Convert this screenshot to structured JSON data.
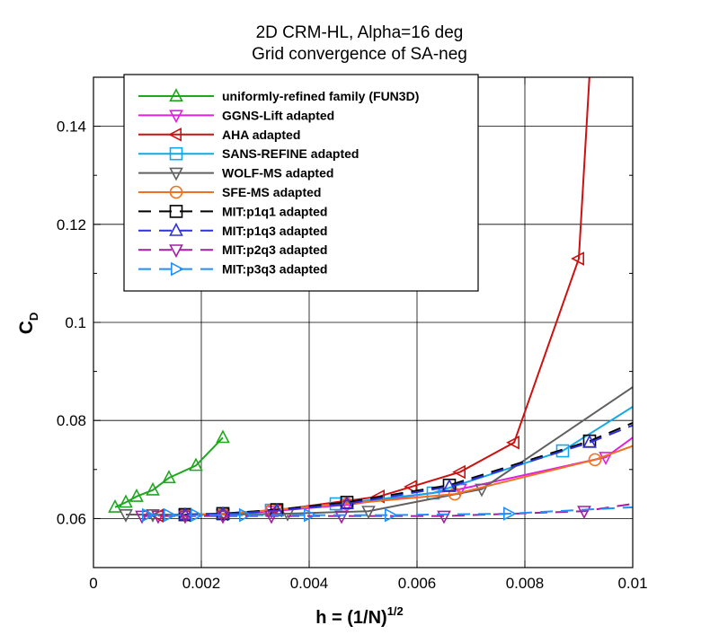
{
  "chart_data": {
    "type": "line",
    "title": "2D CRM-HL, Alpha=16 deg",
    "subtitle": "Grid convergence of SA-neg",
    "xlabel": {
      "main": "h = (1/N)",
      "sup": "1/2"
    },
    "ylabel": {
      "main": "C",
      "sub": "D"
    },
    "xlim": [
      0,
      0.01
    ],
    "ylim": [
      0.05,
      0.15
    ],
    "xticks": [
      0,
      0.002,
      0.004,
      0.006,
      0.008,
      0.01
    ],
    "xtick_labels": [
      "0",
      "0.002",
      "0.004",
      "0.006",
      "0.008",
      "0.01"
    ],
    "yticks": [
      0.06,
      0.08,
      0.1,
      0.12,
      0.14
    ],
    "ytick_labels": [
      "0.06",
      "0.08",
      "0.1",
      "0.12",
      "0.14"
    ],
    "grid": true,
    "legend_position": "top-left",
    "series": [
      {
        "name": "uniformly-refined family (FUN3D)",
        "color": "#1fa81f",
        "marker": "triangle-up",
        "dash": "solid",
        "points": [
          [
            0.0004,
            0.0623
          ],
          [
            0.0006,
            0.0633
          ],
          [
            0.0008,
            0.0645
          ],
          [
            0.0011,
            0.0658
          ],
          [
            0.0014,
            0.0683
          ],
          [
            0.0019,
            0.0708
          ],
          [
            0.0024,
            0.0765
          ]
        ]
      },
      {
        "name": "GGNS-Lift adapted",
        "color": "#e020e0",
        "marker": "triangle-down",
        "dash": "solid",
        "points": [
          [
            0.0017,
            0.0608
          ],
          [
            0.0024,
            0.0608
          ],
          [
            0.0033,
            0.0615
          ],
          [
            0.0047,
            0.0628
          ],
          [
            0.0068,
            0.066
          ],
          [
            0.0095,
            0.0725
          ],
          [
            0.01,
            0.0765
          ]
        ]
      },
      {
        "name": "AHA adapted",
        "color": "#cc1111",
        "marker": "triangle-left",
        "dash": "solid",
        "points": [
          [
            0.0012,
            0.0606
          ],
          [
            0.0017,
            0.0607
          ],
          [
            0.0024,
            0.0609
          ],
          [
            0.0034,
            0.0617
          ],
          [
            0.0053,
            0.0645
          ],
          [
            0.0059,
            0.0665
          ],
          [
            0.0068,
            0.0695
          ],
          [
            0.0078,
            0.0755
          ],
          [
            0.009,
            0.113
          ],
          [
            0.00925,
            0.16
          ]
        ]
      },
      {
        "name": "SANS-REFINE adapted",
        "color": "#10a8e8",
        "marker": "square",
        "dash": "solid",
        "points": [
          [
            0.0017,
            0.0608
          ],
          [
            0.0024,
            0.061
          ],
          [
            0.0033,
            0.0617
          ],
          [
            0.0045,
            0.063
          ],
          [
            0.0063,
            0.0652
          ],
          [
            0.0087,
            0.0738
          ],
          [
            0.01,
            0.0828
          ]
        ]
      },
      {
        "name": "WOLF-MS adapted",
        "color": "#606060",
        "marker": "triangle-down",
        "dash": "solid",
        "points": [
          [
            0.0006,
            0.0608
          ],
          [
            0.0011,
            0.0608
          ],
          [
            0.0017,
            0.0608
          ],
          [
            0.0024,
            0.0608
          ],
          [
            0.0036,
            0.061
          ],
          [
            0.0051,
            0.0615
          ],
          [
            0.0072,
            0.066
          ],
          [
            0.01,
            0.0868
          ]
        ]
      },
      {
        "name": "SFE-MS adapted",
        "color": "#f07020",
        "marker": "circle",
        "dash": "solid",
        "points": [
          [
            0.0017,
            0.0608
          ],
          [
            0.0024,
            0.0609
          ],
          [
            0.0033,
            0.0617
          ],
          [
            0.0047,
            0.063
          ],
          [
            0.0067,
            0.065
          ],
          [
            0.0093,
            0.072
          ],
          [
            0.01,
            0.0748
          ]
        ]
      },
      {
        "name": "MIT:p1q1 adapted",
        "color": "#000000",
        "marker": "square",
        "dash": "dashed",
        "points": [
          [
            0.0017,
            0.0608
          ],
          [
            0.0024,
            0.061
          ],
          [
            0.0034,
            0.0618
          ],
          [
            0.0047,
            0.0633
          ],
          [
            0.0066,
            0.0668
          ],
          [
            0.0092,
            0.0758
          ],
          [
            0.01,
            0.0795
          ]
        ]
      },
      {
        "name": "MIT:p1q3 adapted",
        "color": "#3030d8",
        "marker": "triangle-up",
        "dash": "dashed",
        "points": [
          [
            0.0017,
            0.0607
          ],
          [
            0.0024,
            0.0609
          ],
          [
            0.0034,
            0.0616
          ],
          [
            0.0047,
            0.063
          ],
          [
            0.0066,
            0.0665
          ],
          [
            0.0092,
            0.0755
          ],
          [
            0.01,
            0.079
          ]
        ]
      },
      {
        "name": "MIT:p2q3 adapted",
        "color": "#a020a0",
        "marker": "triangle-down",
        "dash": "dashed",
        "points": [
          [
            0.0009,
            0.0605
          ],
          [
            0.0012,
            0.0605
          ],
          [
            0.0017,
            0.0605
          ],
          [
            0.0024,
            0.0605
          ],
          [
            0.0033,
            0.0605
          ],
          [
            0.0046,
            0.0605
          ],
          [
            0.0065,
            0.0605
          ],
          [
            0.0091,
            0.0615
          ],
          [
            0.01,
            0.063
          ]
        ]
      },
      {
        "name": "MIT:p3q3 adapted",
        "color": "#1e90ff",
        "marker": "triangle-right",
        "dash": "dashed",
        "points": [
          [
            0.001,
            0.0607
          ],
          [
            0.0014,
            0.0607
          ],
          [
            0.0019,
            0.0607
          ],
          [
            0.0028,
            0.0607
          ],
          [
            0.004,
            0.0607
          ],
          [
            0.0055,
            0.0607
          ],
          [
            0.0077,
            0.061
          ],
          [
            0.01,
            0.0623
          ]
        ]
      }
    ]
  }
}
